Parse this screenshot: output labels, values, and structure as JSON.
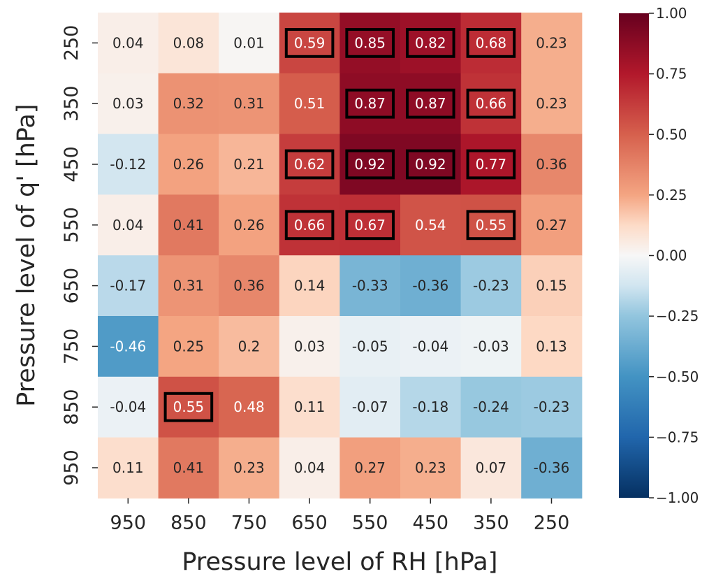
{
  "chart_data": {
    "type": "heatmap",
    "xlabel": "Pressure level of RH [hPa]",
    "ylabel": "Pressure level of q' [hPa]",
    "x_categories": [
      "950",
      "850",
      "750",
      "650",
      "550",
      "450",
      "350",
      "250"
    ],
    "y_categories": [
      "250",
      "350",
      "450",
      "550",
      "650",
      "750",
      "850",
      "950"
    ],
    "values": [
      [
        0.04,
        0.08,
        0.01,
        0.59,
        0.85,
        0.82,
        0.68,
        0.23
      ],
      [
        0.03,
        0.32,
        0.31,
        0.51,
        0.87,
        0.87,
        0.66,
        0.23
      ],
      [
        -0.12,
        0.26,
        0.21,
        0.62,
        0.92,
        0.92,
        0.77,
        0.36
      ],
      [
        0.04,
        0.41,
        0.26,
        0.66,
        0.67,
        0.54,
        0.55,
        0.27
      ],
      [
        -0.17,
        0.31,
        0.36,
        0.14,
        -0.33,
        -0.36,
        -0.23,
        0.15
      ],
      [
        -0.46,
        0.25,
        0.2,
        0.03,
        -0.05,
        -0.04,
        -0.03,
        0.13
      ],
      [
        -0.04,
        0.55,
        0.48,
        0.11,
        -0.07,
        -0.18,
        -0.24,
        -0.23
      ],
      [
        0.11,
        0.41,
        0.23,
        0.04,
        0.27,
        0.23,
        0.07,
        -0.36
      ]
    ],
    "value_labels": [
      [
        "0.04",
        "0.08",
        "0.01",
        "0.59",
        "0.85",
        "0.82",
        "0.68",
        "0.23"
      ],
      [
        "0.03",
        "0.32",
        "0.31",
        "0.51",
        "0.87",
        "0.87",
        "0.66",
        "0.23"
      ],
      [
        "-0.12",
        "0.26",
        "0.21",
        "0.62",
        "0.92",
        "0.92",
        "0.77",
        "0.36"
      ],
      [
        "0.04",
        "0.41",
        "0.26",
        "0.66",
        "0.67",
        "0.54",
        "0.55",
        "0.27"
      ],
      [
        "-0.17",
        "0.31",
        "0.36",
        "0.14",
        "-0.33",
        "-0.36",
        "-0.23",
        "0.15"
      ],
      [
        "-0.46",
        "0.25",
        "0.2",
        "0.03",
        "-0.05",
        "-0.04",
        "-0.03",
        "0.13"
      ],
      [
        "-0.04",
        "0.55",
        "0.48",
        "0.11",
        "-0.07",
        "-0.18",
        "-0.24",
        "-0.23"
      ],
      [
        "0.11",
        "0.41",
        "0.23",
        "0.04",
        "0.27",
        "0.23",
        "0.07",
        "-0.36"
      ]
    ],
    "highlighted_cells": [
      [
        0,
        3
      ],
      [
        0,
        4
      ],
      [
        0,
        5
      ],
      [
        0,
        6
      ],
      [
        1,
        4
      ],
      [
        1,
        5
      ],
      [
        1,
        6
      ],
      [
        2,
        3
      ],
      [
        2,
        4
      ],
      [
        2,
        5
      ],
      [
        2,
        6
      ],
      [
        3,
        3
      ],
      [
        3,
        4
      ],
      [
        3,
        6
      ],
      [
        6,
        1
      ]
    ],
    "colorscale": "RdBu_r",
    "vmin": -1.0,
    "vmax": 1.0,
    "colorbar_ticks": [
      "1.00",
      "0.75",
      "0.50",
      "0.25",
      "0.00",
      "−0.25",
      "−0.50",
      "−0.75",
      "−1.00"
    ],
    "colorbar_tick_values": [
      1.0,
      0.75,
      0.5,
      0.25,
      0.0,
      -0.25,
      -0.5,
      -0.75,
      -1.0
    ],
    "grid": false,
    "colorbar_placement": "right"
  }
}
